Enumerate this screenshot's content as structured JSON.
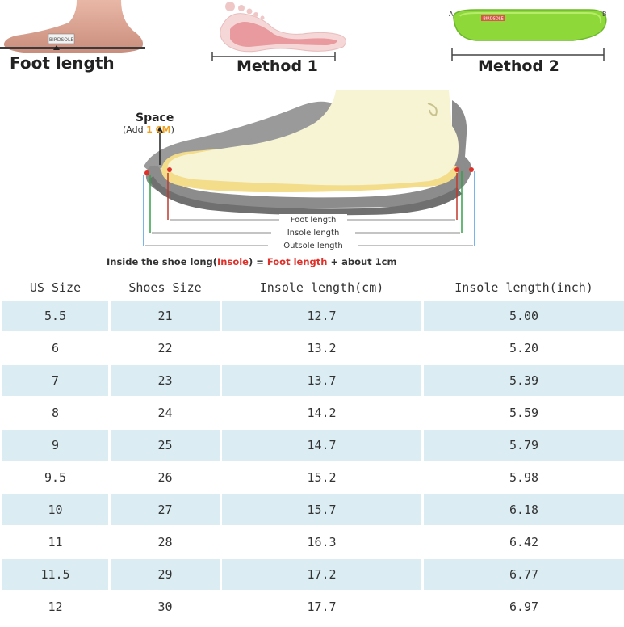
{
  "guide": {
    "foot_length_label": "Foot length",
    "method1_label": "Method 1",
    "method2_label": "Method 2",
    "insole_brand_tag": "BIRDSOLE",
    "point_a": "A",
    "point_b": "B",
    "space_label": "Space",
    "space_add_prefix": "(Add ",
    "space_add_value": "1 CM",
    "space_add_suffix": ")",
    "foot_length_line": "Foot length",
    "insole_length_line": "Insole length",
    "outsole_length_line": "Outsole length",
    "formula_prefix": "Inside the shoe long(",
    "formula_insole": "Insole",
    "formula_mid": ") = ",
    "formula_foot": "Foot length",
    "formula_suffix": " + about 1cm"
  },
  "table": {
    "headers": [
      "US Size",
      "Shoes Size",
      "Insole length(cm)",
      "Insole length(inch)"
    ],
    "rows": [
      [
        "5.5",
        "21",
        "12.7",
        "5.00"
      ],
      [
        "6",
        "22",
        "13.2",
        "5.20"
      ],
      [
        "7",
        "23",
        "13.7",
        "5.39"
      ],
      [
        "8",
        "24",
        "14.2",
        "5.59"
      ],
      [
        "9",
        "25",
        "14.7",
        "5.79"
      ],
      [
        "9.5",
        "26",
        "15.2",
        "5.98"
      ],
      [
        "10",
        "27",
        "15.7",
        "6.18"
      ],
      [
        "11",
        "28",
        "16.3",
        "6.42"
      ],
      [
        "11.5",
        "29",
        "17.2",
        "6.77"
      ],
      [
        "12",
        "30",
        "17.7",
        "6.97"
      ]
    ]
  },
  "colors": {
    "row_shade": "#dbedf3",
    "accent_red": "#e0302a",
    "accent_orange": "#f0a020",
    "insole_green": "#8ed83a"
  }
}
